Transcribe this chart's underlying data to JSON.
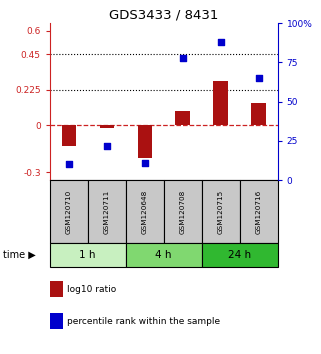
{
  "title": "GDS3433 / 8431",
  "samples": [
    "GSM120710",
    "GSM120711",
    "GSM120648",
    "GSM120708",
    "GSM120715",
    "GSM120716"
  ],
  "log10_ratio": [
    -0.13,
    -0.02,
    -0.21,
    0.09,
    0.28,
    0.14
  ],
  "percentile_rank": [
    10,
    22,
    11,
    78,
    88,
    65
  ],
  "time_groups": [
    {
      "label": "1 h",
      "start": 0,
      "end": 1,
      "color": "#c8f0c0"
    },
    {
      "label": "4 h",
      "start": 2,
      "end": 3,
      "color": "#80d870"
    },
    {
      "label": "24 h",
      "start": 4,
      "end": 5,
      "color": "#30b830"
    }
  ],
  "ylim_left": [
    -0.35,
    0.65
  ],
  "ylim_right": [
    0,
    100
  ],
  "yticks_left": [
    -0.3,
    0,
    0.225,
    0.45,
    0.6
  ],
  "ytick_labels_left": [
    "-0.3",
    "0",
    "0.225",
    "0.45",
    "0.6"
  ],
  "yticks_right": [
    0,
    25,
    50,
    75,
    100
  ],
  "ytick_labels_right": [
    "0",
    "25",
    "50",
    "75",
    "100%"
  ],
  "hlines": [
    0.225,
    0.45
  ],
  "bar_color": "#aa1111",
  "dot_color": "#0000cc",
  "zero_line_color": "#cc2222",
  "sample_box_color": "#c8c8c8",
  "legend_items": [
    {
      "color": "#aa1111",
      "label": "log10 ratio"
    },
    {
      "color": "#0000cc",
      "label": "percentile rank within the sample"
    }
  ]
}
